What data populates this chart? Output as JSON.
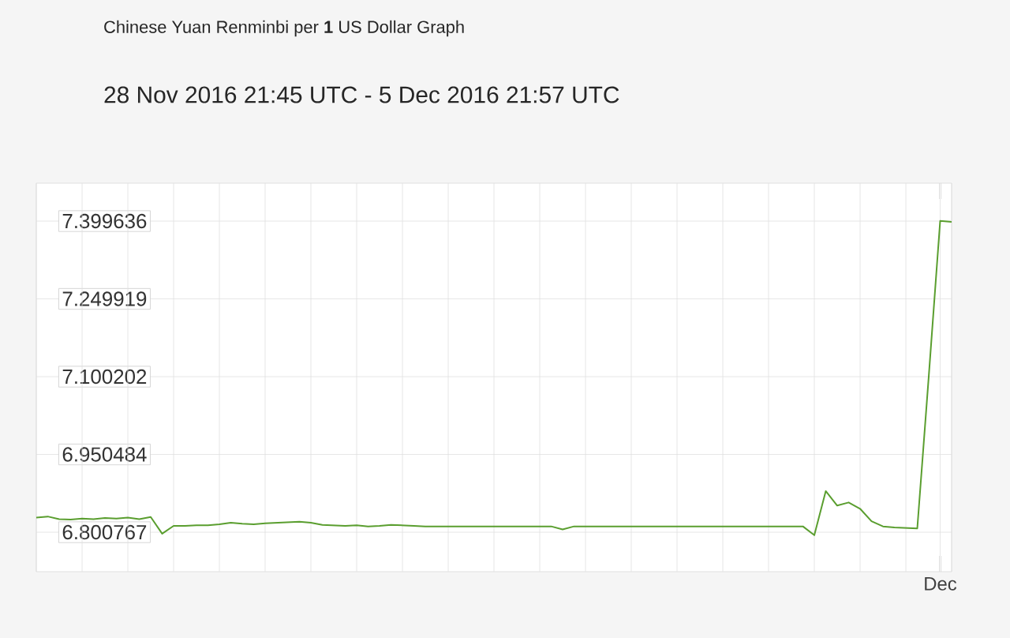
{
  "chart_data": {
    "type": "line",
    "title": "Chinese Yuan Renminbi per **1** US Dollar Graph",
    "subtitle": "28 Nov 2016 21:45 UTC - 5 Dec 2016 21:57 UTC",
    "categories": [
      null,
      null,
      null,
      null,
      null,
      null,
      null,
      null,
      null,
      null,
      null,
      null,
      null,
      null,
      null,
      null,
      null,
      null,
      null,
      null,
      null,
      null,
      null,
      null,
      null,
      null,
      null,
      null,
      null,
      null,
      null,
      null,
      null,
      null,
      null,
      null,
      null,
      null,
      null,
      null,
      null,
      null,
      null,
      null,
      null,
      null,
      null,
      null,
      null,
      null,
      null,
      null,
      null,
      null,
      null,
      null,
      null,
      null,
      null,
      null,
      null,
      null,
      null,
      null,
      null,
      null,
      null,
      null,
      null,
      null,
      null,
      null,
      null,
      null,
      null,
      null,
      null,
      null,
      null,
      "Dec",
      null
    ],
    "values": [
      6.829,
      6.831,
      6.826,
      6.825,
      6.827,
      6.826,
      6.828,
      6.827,
      6.829,
      6.826,
      6.83,
      6.798,
      6.813,
      6.813,
      6.814,
      6.814,
      6.816,
      6.819,
      6.817,
      6.816,
      6.818,
      6.819,
      6.82,
      6.821,
      6.819,
      6.815,
      6.814,
      6.813,
      6.814,
      6.812,
      6.813,
      6.815,
      6.814,
      6.813,
      6.812,
      6.812,
      6.812,
      6.812,
      6.812,
      6.812,
      6.812,
      6.812,
      6.812,
      6.812,
      6.812,
      6.812,
      6.806,
      6.812,
      6.812,
      6.812,
      6.812,
      6.812,
      6.812,
      6.812,
      6.812,
      6.812,
      6.812,
      6.812,
      6.812,
      6.812,
      6.812,
      6.812,
      6.812,
      6.812,
      6.812,
      6.812,
      6.812,
      6.812,
      6.795,
      6.88,
      6.852,
      6.858,
      6.846,
      6.822,
      6.812,
      6.81,
      6.809,
      6.808,
      7.1,
      7.4,
      7.398
    ],
    "color": "#5a9e2f",
    "ylim": [
      6.7248,
      7.4726
    ],
    "yticks": [
      6.800767,
      6.950484,
      7.100202,
      7.249919,
      7.399636
    ],
    "grid": true
  }
}
